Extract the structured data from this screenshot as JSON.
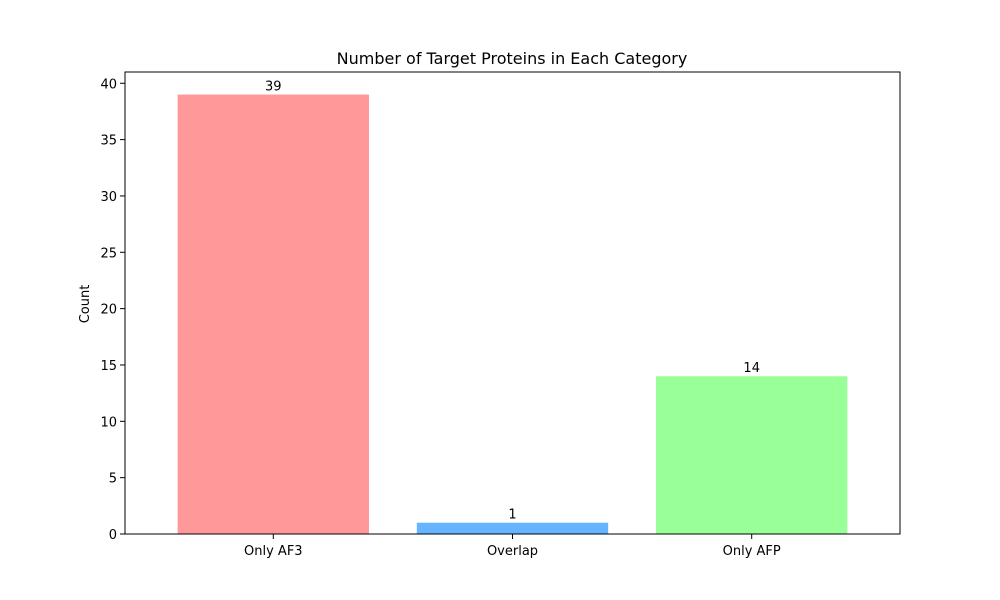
{
  "chart_data": {
    "type": "bar",
    "title": "Number of Target Proteins in Each Category",
    "xlabel": "",
    "ylabel": "Count",
    "categories": [
      "Only AF3",
      "Overlap",
      "Only AFP"
    ],
    "values": [
      39,
      1,
      14
    ],
    "data_labels": [
      "39",
      "1",
      "14"
    ],
    "colors": [
      "#ff9999",
      "#66b3ff",
      "#99ff99"
    ],
    "ylim": [
      0,
      41
    ],
    "yticks": [
      0,
      5,
      10,
      15,
      20,
      25,
      30,
      35,
      40
    ],
    "grid": false,
    "legend": "none"
  }
}
